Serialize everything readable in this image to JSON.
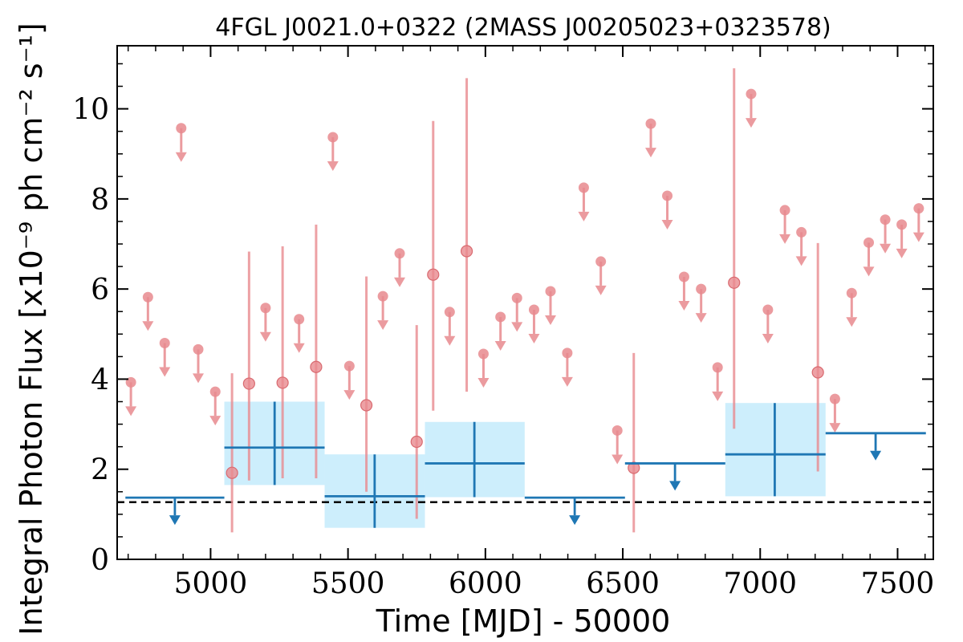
{
  "chart_data": {
    "type": "scatter",
    "title": "4FGL J0021.0+0322 (2MASS J00205023+0323578)",
    "xlabel": "Time [MJD] - 50000",
    "ylabel": "Integral Photon Flux [x10⁻⁹ ph cm⁻² s⁻¹]",
    "xlim": [
      4660,
      7630
    ],
    "ylim": [
      0,
      11.4
    ],
    "x_ticks": [
      "5000",
      "5500",
      "6000",
      "6500",
      "7000",
      "7500"
    ],
    "y_ticks": [
      "0",
      "2",
      "4",
      "6",
      "8",
      "10"
    ],
    "baseline": 1.27,
    "colors": {
      "short_bins": "#e88a8e",
      "long_bins": "#1f77b4",
      "long_error_box": "#cdeefc",
      "baseline": "#000000"
    },
    "long_bins": {
      "detections": [
        {
          "x": 5233,
          "x_lo": 5050,
          "x_hi": 5415,
          "y": 2.48,
          "y_lo": 1.65,
          "y_hi": 3.5
        },
        {
          "x": 5597,
          "x_lo": 5415,
          "x_hi": 5780,
          "y": 1.4,
          "y_lo": 0.7,
          "y_hi": 2.33
        },
        {
          "x": 5960,
          "x_lo": 5780,
          "x_hi": 6143,
          "y": 2.13,
          "y_lo": 1.38,
          "y_hi": 3.05
        },
        {
          "x": 7053,
          "x_lo": 6873,
          "x_hi": 7238,
          "y": 2.33,
          "y_lo": 1.4,
          "y_hi": 3.47
        }
      ],
      "upper_limits": [
        {
          "x_lo": 4690,
          "x_hi": 5050,
          "y": 1.37,
          "x_arrow": 4870
        },
        {
          "x_lo": 6143,
          "x_hi": 6508,
          "y": 1.37,
          "x_arrow": 6325
        },
        {
          "x_lo": 6508,
          "x_hi": 6873,
          "y": 2.13,
          "x_arrow": 6690
        },
        {
          "x_lo": 7238,
          "x_hi": 7603,
          "y": 2.8,
          "x_arrow": 7420
        }
      ]
    },
    "short_bins": {
      "detections": [
        {
          "x": 5078,
          "y": 1.92,
          "y_lo": 0.6,
          "y_hi": 4.13
        },
        {
          "x": 5140,
          "y": 3.9,
          "y_lo": 1.75,
          "y_hi": 6.83
        },
        {
          "x": 5262,
          "y": 3.92,
          "y_lo": 1.8,
          "y_hi": 6.95
        },
        {
          "x": 5384,
          "y": 4.27,
          "y_lo": 1.8,
          "y_hi": 7.43
        },
        {
          "x": 5567,
          "y": 3.42,
          "y_lo": 1.5,
          "y_hi": 6.28
        },
        {
          "x": 5750,
          "y": 2.61,
          "y_lo": 0.9,
          "y_hi": 5.2
        },
        {
          "x": 5810,
          "y": 6.32,
          "y_lo": 3.3,
          "y_hi": 9.73
        },
        {
          "x": 5932,
          "y": 6.84,
          "y_lo": 3.72,
          "y_hi": 10.68
        },
        {
          "x": 6540,
          "y": 2.03,
          "y_lo": 0.6,
          "y_hi": 4.58
        },
        {
          "x": 6905,
          "y": 6.14,
          "y_lo": 2.9,
          "y_hi": 10.9
        },
        {
          "x": 7210,
          "y": 4.15,
          "y_lo": 1.95,
          "y_hi": 7.02
        }
      ],
      "upper_limits": [
        {
          "x": 4710,
          "y": 3.93
        },
        {
          "x": 4772,
          "y": 5.82
        },
        {
          "x": 4833,
          "y": 4.8
        },
        {
          "x": 4893,
          "y": 9.57
        },
        {
          "x": 4955,
          "y": 4.66
        },
        {
          "x": 5017,
          "y": 3.72
        },
        {
          "x": 5200,
          "y": 5.58
        },
        {
          "x": 5322,
          "y": 5.33
        },
        {
          "x": 5445,
          "y": 9.37
        },
        {
          "x": 5505,
          "y": 4.29
        },
        {
          "x": 5627,
          "y": 5.84
        },
        {
          "x": 5688,
          "y": 6.79
        },
        {
          "x": 5870,
          "y": 5.49
        },
        {
          "x": 5993,
          "y": 4.56
        },
        {
          "x": 6055,
          "y": 5.38
        },
        {
          "x": 6115,
          "y": 5.8
        },
        {
          "x": 6177,
          "y": 5.54
        },
        {
          "x": 6237,
          "y": 5.95
        },
        {
          "x": 6298,
          "y": 4.58
        },
        {
          "x": 6358,
          "y": 8.25
        },
        {
          "x": 6420,
          "y": 6.61
        },
        {
          "x": 6480,
          "y": 2.86
        },
        {
          "x": 6602,
          "y": 9.67
        },
        {
          "x": 6662,
          "y": 8.07
        },
        {
          "x": 6723,
          "y": 6.27
        },
        {
          "x": 6785,
          "y": 6.0
        },
        {
          "x": 6845,
          "y": 4.26
        },
        {
          "x": 6967,
          "y": 10.33
        },
        {
          "x": 7028,
          "y": 5.54
        },
        {
          "x": 7090,
          "y": 7.75
        },
        {
          "x": 7150,
          "y": 7.26
        },
        {
          "x": 7272,
          "y": 3.56
        },
        {
          "x": 7333,
          "y": 5.91
        },
        {
          "x": 7395,
          "y": 7.03
        },
        {
          "x": 7455,
          "y": 7.54
        },
        {
          "x": 7515,
          "y": 7.43
        },
        {
          "x": 7577,
          "y": 7.79
        }
      ]
    }
  }
}
